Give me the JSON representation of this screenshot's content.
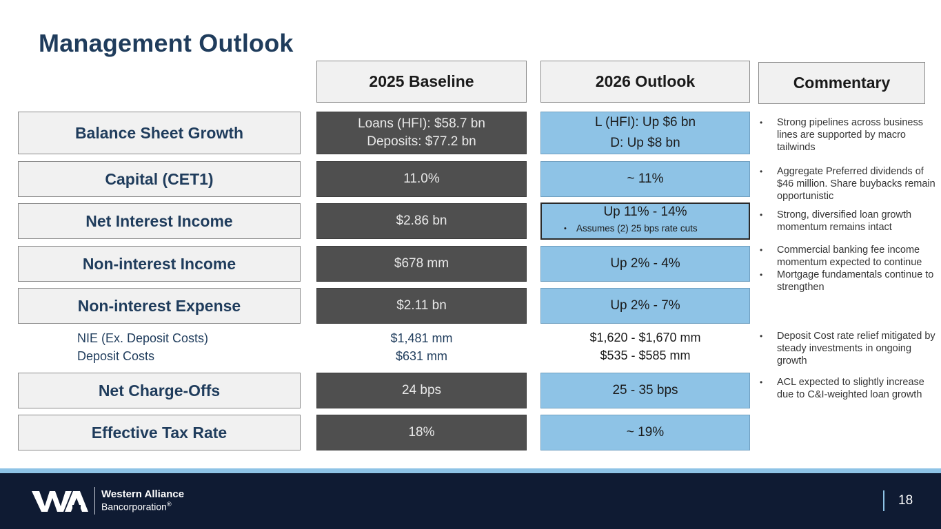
{
  "title": "Management Outlook",
  "headers": {
    "baseline": "2025 Baseline",
    "outlook": "2026 Outlook",
    "commentary": "Commentary"
  },
  "rows": [
    {
      "label": "Balance Sheet Growth",
      "baseline": [
        "Loans (HFI): $58.7 bn",
        "Deposits: $77.2 bn"
      ],
      "outlook": [
        "L (HFI): Up $6 bn",
        "D: Up $8 bn"
      ]
    },
    {
      "label": "Capital (CET1)",
      "baseline": [
        "11.0%"
      ],
      "outlook": [
        "~ 11%"
      ]
    },
    {
      "label": "Net Interest Income",
      "baseline": [
        "$2.86 bn"
      ],
      "outlook": [
        "Up 11% - 14%"
      ],
      "outlook_note": "Assumes (2) 25 bps rate cuts"
    },
    {
      "label": "Non-interest Income",
      "baseline": [
        "$678 mm"
      ],
      "outlook": [
        "Up 2% - 4%"
      ]
    },
    {
      "label": "Non-interest Expense",
      "baseline": [
        "$2.11 bn"
      ],
      "outlook": [
        "Up 2% - 7%"
      ]
    },
    {
      "label": "Net Charge-Offs",
      "baseline": [
        "24 bps"
      ],
      "outlook": [
        "25 - 35 bps"
      ]
    },
    {
      "label": "Effective Tax Rate",
      "baseline": [
        "18%"
      ],
      "outlook": [
        "~ 19%"
      ]
    }
  ],
  "subrows": [
    {
      "label": "NIE (Ex. Deposit Costs)",
      "baseline": "$1,481 mm",
      "outlook": "$1,620 - $1,670 mm"
    },
    {
      "label": "Deposit Costs",
      "baseline": "$631 mm",
      "outlook": "$535 - $585 mm"
    }
  ],
  "commentary": [
    [
      "Strong pipelines across business lines are supported by macro tailwinds"
    ],
    [
      "Aggregate Preferred dividends of $46 million. Share buybacks remain opportunistic"
    ],
    [
      "Strong, diversified loan growth momentum remains intact"
    ],
    [
      "Commercial banking fee income momentum expected to continue",
      "Mortgage fundamentals continue to strengthen"
    ],
    [
      "Deposit Cost rate relief mitigated by steady investments in ongoing growth"
    ],
    [
      "ACL expected to slightly increase due to C&I-weighted loan growth"
    ]
  ],
  "bullet_symbol": "•",
  "footer": {
    "company": "Western Alliance",
    "subsidiary": "Bancorporation",
    "reg_mark": "®",
    "page_number": "18"
  },
  "colors": {
    "navy": "#1f3c5c",
    "baseline_fill": "#4f4f4f",
    "outlook_fill": "#8ec3e6",
    "footer_bg": "#0f1b33"
  }
}
